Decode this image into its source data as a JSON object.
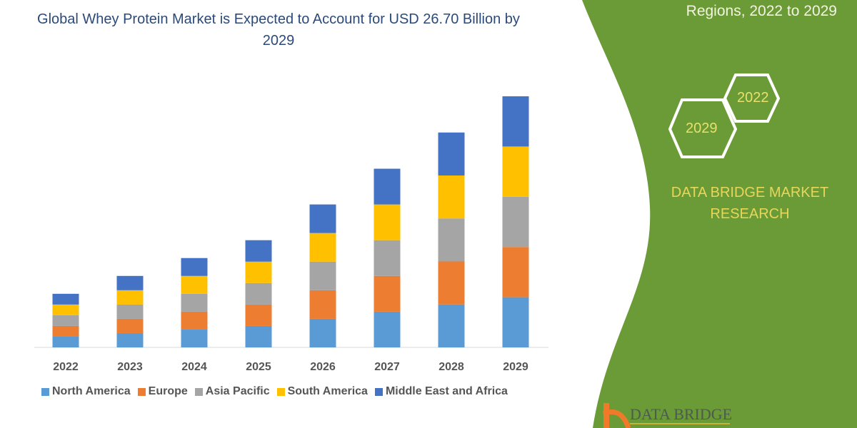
{
  "title": "Global Whey Protein Market is Expected to Account for USD 26.70 Billion by 2029",
  "side_title": "Regions, 2022 to 2029",
  "hexagons": [
    "2022",
    "2029"
  ],
  "brand": {
    "line1": "DATA BRIDGE MARKET",
    "line2": "RESEARCH",
    "logo_text": "DATA BRIDGE"
  },
  "colors": {
    "green_panel": "#6b9b37",
    "title": "#2b4a7a",
    "brand_text": "#e8d65a"
  },
  "chart_data": {
    "type": "bar",
    "stacked": true,
    "title": "Global Whey Protein Market is Expected to Account for USD 26.70 Billion by 2029",
    "xlabel": "",
    "ylabel": "",
    "categories": [
      "2022",
      "2023",
      "2024",
      "2025",
      "2026",
      "2027",
      "2028",
      "2029"
    ],
    "series": [
      {
        "name": "North America",
        "color": "#5b9bd5",
        "values": [
          1.14,
          1.52,
          1.9,
          2.28,
          3.04,
          3.8,
          4.57,
          5.34
        ]
      },
      {
        "name": "Europe",
        "color": "#ed7d31",
        "values": [
          1.14,
          1.52,
          1.9,
          2.28,
          3.04,
          3.8,
          4.57,
          5.34
        ]
      },
      {
        "name": "Asia Pacific",
        "color": "#a5a5a5",
        "values": [
          1.14,
          1.52,
          1.9,
          2.28,
          3.04,
          3.8,
          4.57,
          5.34
        ]
      },
      {
        "name": "South America",
        "color": "#ffc000",
        "values": [
          1.14,
          1.52,
          1.9,
          2.28,
          3.04,
          3.8,
          4.57,
          5.34
        ]
      },
      {
        "name": "Middle East and Africa",
        "color": "#4472c4",
        "values": [
          1.14,
          1.52,
          1.9,
          2.28,
          3.04,
          3.8,
          4.57,
          5.34
        ]
      }
    ],
    "ylim": [
      0,
      27
    ],
    "grid": false,
    "legend_position": "bottom"
  }
}
